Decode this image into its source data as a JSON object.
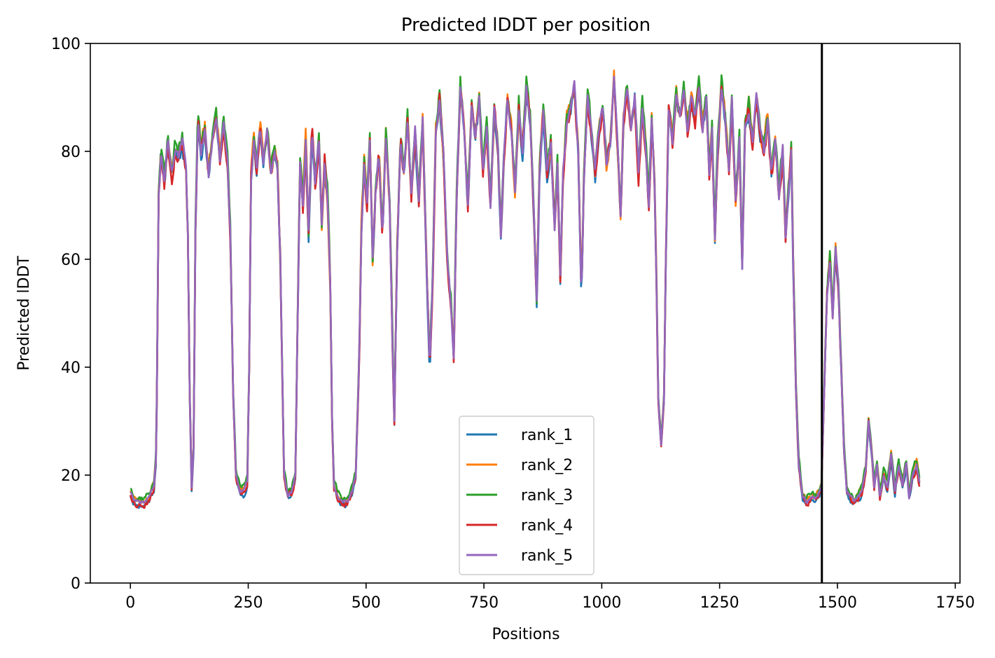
{
  "chart_data": {
    "type": "line",
    "title": "Predicted lDDT per position",
    "xlabel": "Positions",
    "ylabel": "Predicted lDDT",
    "xlim": [
      -85,
      1760
    ],
    "ylim": [
      0,
      100
    ],
    "xticks": [
      0,
      250,
      500,
      750,
      1000,
      1250,
      1500,
      1750
    ],
    "yticks": [
      0,
      20,
      40,
      60,
      80,
      100
    ],
    "vline_x": 1467,
    "legend_position": "lower center",
    "grid": false,
    "base": [
      [
        0,
        17
      ],
      [
        10,
        15
      ],
      [
        20,
        15
      ],
      [
        30,
        15
      ],
      [
        40,
        16
      ],
      [
        50,
        18
      ],
      [
        55,
        24
      ],
      [
        60,
        72
      ],
      [
        65,
        80
      ],
      [
        72,
        75
      ],
      [
        80,
        82
      ],
      [
        88,
        76
      ],
      [
        95,
        81
      ],
      [
        102,
        79
      ],
      [
        110,
        82
      ],
      [
        118,
        77
      ],
      [
        122,
        65
      ],
      [
        126,
        35
      ],
      [
        130,
        18
      ],
      [
        134,
        25
      ],
      [
        138,
        65
      ],
      [
        143,
        86
      ],
      [
        150,
        80
      ],
      [
        158,
        84
      ],
      [
        166,
        76
      ],
      [
        174,
        82
      ],
      [
        182,
        87
      ],
      [
        190,
        79
      ],
      [
        198,
        85
      ],
      [
        206,
        78
      ],
      [
        212,
        65
      ],
      [
        218,
        35
      ],
      [
        224,
        20
      ],
      [
        232,
        17
      ],
      [
        240,
        17
      ],
      [
        248,
        19
      ],
      [
        252,
        40
      ],
      [
        256,
        75
      ],
      [
        262,
        82
      ],
      [
        268,
        76
      ],
      [
        275,
        85
      ],
      [
        282,
        78
      ],
      [
        290,
        84
      ],
      [
        298,
        76
      ],
      [
        306,
        80
      ],
      [
        312,
        77
      ],
      [
        318,
        60
      ],
      [
        322,
        40
      ],
      [
        326,
        20
      ],
      [
        334,
        16
      ],
      [
        342,
        17
      ],
      [
        350,
        20
      ],
      [
        355,
        50
      ],
      [
        360,
        78
      ],
      [
        366,
        70
      ],
      [
        372,
        82
      ],
      [
        378,
        65
      ],
      [
        385,
        84
      ],
      [
        392,
        74
      ],
      [
        400,
        82
      ],
      [
        406,
        66
      ],
      [
        412,
        78
      ],
      [
        418,
        72
      ],
      [
        424,
        55
      ],
      [
        428,
        30
      ],
      [
        432,
        18
      ],
      [
        440,
        16
      ],
      [
        450,
        15
      ],
      [
        460,
        15
      ],
      [
        470,
        17
      ],
      [
        478,
        20
      ],
      [
        485,
        40
      ],
      [
        490,
        65
      ],
      [
        496,
        78
      ],
      [
        502,
        70
      ],
      [
        508,
        82
      ],
      [
        514,
        60
      ],
      [
        520,
        72
      ],
      [
        527,
        80
      ],
      [
        535,
        65
      ],
      [
        542,
        83
      ],
      [
        550,
        70
      ],
      [
        556,
        45
      ],
      [
        560,
        30
      ],
      [
        566,
        62
      ],
      [
        573,
        82
      ],
      [
        580,
        76
      ],
      [
        588,
        86
      ],
      [
        596,
        72
      ],
      [
        604,
        84
      ],
      [
        612,
        70
      ],
      [
        620,
        86
      ],
      [
        628,
        60
      ],
      [
        635,
        40
      ],
      [
        641,
        55
      ],
      [
        648,
        84
      ],
      [
        656,
        90
      ],
      [
        664,
        80
      ],
      [
        672,
        60
      ],
      [
        680,
        52
      ],
      [
        686,
        42
      ],
      [
        692,
        72
      ],
      [
        700,
        92
      ],
      [
        708,
        84
      ],
      [
        716,
        70
      ],
      [
        724,
        88
      ],
      [
        732,
        82
      ],
      [
        740,
        90
      ],
      [
        748,
        76
      ],
      [
        756,
        84
      ],
      [
        764,
        70
      ],
      [
        772,
        88
      ],
      [
        780,
        80
      ],
      [
        786,
        64
      ],
      [
        792,
        78
      ],
      [
        800,
        90
      ],
      [
        808,
        84
      ],
      [
        816,
        72
      ],
      [
        824,
        88
      ],
      [
        832,
        80
      ],
      [
        840,
        92
      ],
      [
        848,
        86
      ],
      [
        856,
        68
      ],
      [
        862,
        52
      ],
      [
        868,
        76
      ],
      [
        876,
        88
      ],
      [
        884,
        76
      ],
      [
        892,
        82
      ],
      [
        900,
        66
      ],
      [
        906,
        78
      ],
      [
        912,
        56
      ],
      [
        918,
        76
      ],
      [
        926,
        86
      ],
      [
        934,
        88
      ],
      [
        942,
        92
      ],
      [
        950,
        80
      ],
      [
        957,
        52
      ],
      [
        962,
        74
      ],
      [
        970,
        90
      ],
      [
        978,
        84
      ],
      [
        986,
        76
      ],
      [
        994,
        84
      ],
      [
        1002,
        88
      ],
      [
        1010,
        78
      ],
      [
        1018,
        82
      ],
      [
        1026,
        94
      ],
      [
        1034,
        80
      ],
      [
        1040,
        68
      ],
      [
        1046,
        86
      ],
      [
        1054,
        92
      ],
      [
        1062,
        84
      ],
      [
        1070,
        90
      ],
      [
        1078,
        76
      ],
      [
        1086,
        88
      ],
      [
        1094,
        80
      ],
      [
        1100,
        70
      ],
      [
        1106,
        86
      ],
      [
        1112,
        74
      ],
      [
        1116,
        56
      ],
      [
        1120,
        34
      ],
      [
        1126,
        26
      ],
      [
        1132,
        34
      ],
      [
        1136,
        60
      ],
      [
        1142,
        88
      ],
      [
        1150,
        82
      ],
      [
        1158,
        90
      ],
      [
        1166,
        86
      ],
      [
        1174,
        92
      ],
      [
        1182,
        84
      ],
      [
        1190,
        90
      ],
      [
        1198,
        86
      ],
      [
        1206,
        92
      ],
      [
        1214,
        84
      ],
      [
        1222,
        90
      ],
      [
        1228,
        76
      ],
      [
        1234,
        84
      ],
      [
        1240,
        64
      ],
      [
        1246,
        80
      ],
      [
        1254,
        92
      ],
      [
        1262,
        86
      ],
      [
        1270,
        76
      ],
      [
        1276,
        90
      ],
      [
        1284,
        70
      ],
      [
        1292,
        82
      ],
      [
        1298,
        58
      ],
      [
        1304,
        84
      ],
      [
        1312,
        88
      ],
      [
        1320,
        82
      ],
      [
        1328,
        90
      ],
      [
        1336,
        84
      ],
      [
        1344,
        80
      ],
      [
        1352,
        86
      ],
      [
        1360,
        76
      ],
      [
        1368,
        82
      ],
      [
        1376,
        72
      ],
      [
        1384,
        80
      ],
      [
        1390,
        64
      ],
      [
        1396,
        72
      ],
      [
        1402,
        80
      ],
      [
        1406,
        60
      ],
      [
        1412,
        36
      ],
      [
        1418,
        22
      ],
      [
        1426,
        16
      ],
      [
        1434,
        15
      ],
      [
        1442,
        16
      ],
      [
        1450,
        16
      ],
      [
        1458,
        16
      ],
      [
        1466,
        18
      ],
      [
        1472,
        36
      ],
      [
        1478,
        54
      ],
      [
        1484,
        60
      ],
      [
        1490,
        50
      ],
      [
        1496,
        62
      ],
      [
        1502,
        55
      ],
      [
        1508,
        40
      ],
      [
        1514,
        25
      ],
      [
        1520,
        17
      ],
      [
        1528,
        16
      ],
      [
        1536,
        15
      ],
      [
        1544,
        16
      ],
      [
        1552,
        17
      ],
      [
        1560,
        21
      ],
      [
        1566,
        30
      ],
      [
        1572,
        25
      ],
      [
        1578,
        18
      ],
      [
        1584,
        22
      ],
      [
        1590,
        16
      ],
      [
        1598,
        20
      ],
      [
        1606,
        18
      ],
      [
        1614,
        24
      ],
      [
        1622,
        17
      ],
      [
        1630,
        22
      ],
      [
        1638,
        18
      ],
      [
        1646,
        22
      ],
      [
        1652,
        16
      ],
      [
        1660,
        20
      ],
      [
        1668,
        22
      ],
      [
        1675,
        18
      ]
    ],
    "series": [
      {
        "name": "rank_1",
        "color": "#1f77b4",
        "seed": 11,
        "offset": -0.6,
        "jitter": 2.6
      },
      {
        "name": "rank_2",
        "color": "#ff7f0e",
        "seed": 23,
        "offset": 0.4,
        "jitter": 2.8
      },
      {
        "name": "rank_3",
        "color": "#2ca02c",
        "seed": 37,
        "offset": 0.8,
        "jitter": 2.6
      },
      {
        "name": "rank_4",
        "color": "#d62728",
        "seed": 53,
        "offset": -0.4,
        "jitter": 2.8
      },
      {
        "name": "rank_5",
        "color": "#9467bd",
        "seed": 71,
        "offset": 0.0,
        "jitter": 1.6
      }
    ]
  }
}
